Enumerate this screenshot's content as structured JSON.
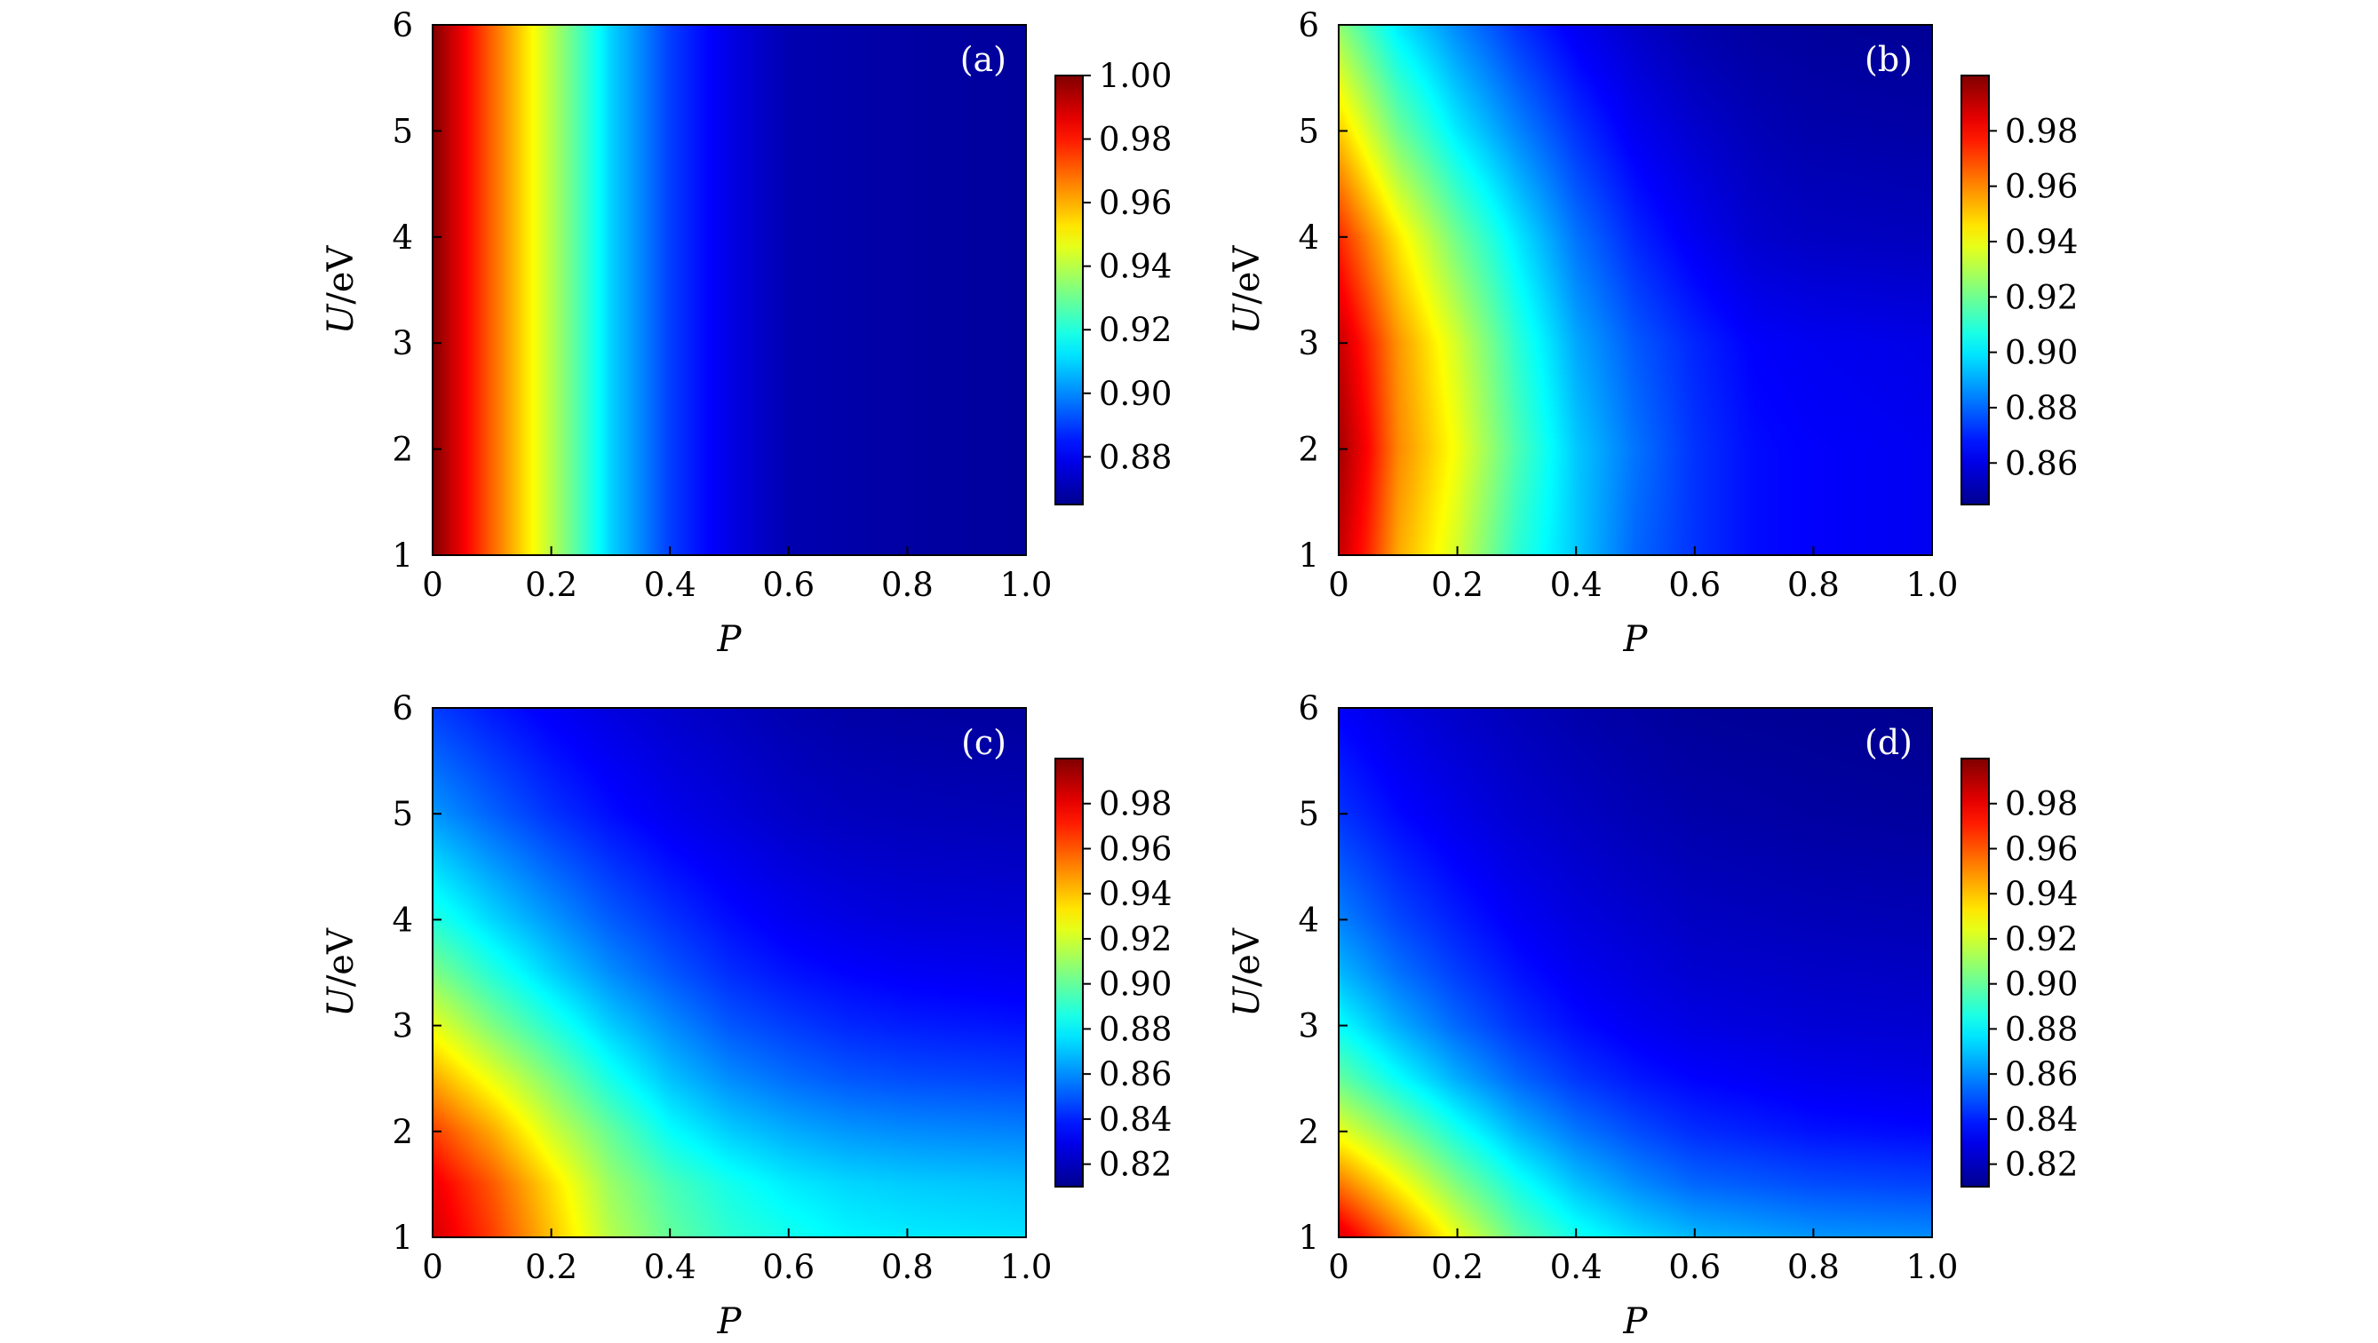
{
  "colors": {
    "colormap": [
      "#00008f",
      "#0000ff",
      "#00ffff",
      "#ffff00",
      "#ff0000",
      "#800000"
    ],
    "frame": "#000000",
    "tag_text": "#ffffff"
  },
  "chart_data": [
    {
      "type": "heatmap",
      "panel_label": "(a)",
      "xlabel": "P",
      "ylabel": "U/eV",
      "xlim": [
        0,
        1
      ],
      "ylim": [
        1,
        6
      ],
      "xticks": [
        "0",
        "0.2",
        "0.4",
        "0.6",
        "0.8",
        "1.0"
      ],
      "yticks": [
        "1",
        "2",
        "3",
        "4",
        "5",
        "6"
      ],
      "colorbar": {
        "min": 0.865,
        "max": 1.0,
        "ticks": [
          "0.88",
          "0.90",
          "0.92",
          "0.94",
          "0.96",
          "0.98",
          "1.00"
        ]
      },
      "grid_P": [
        0,
        0.05,
        0.1,
        0.15,
        0.2,
        0.3,
        0.4,
        0.5,
        0.6,
        0.8,
        1.0
      ],
      "grid_U": [
        1,
        2,
        3,
        4,
        5,
        6
      ],
      "z": [
        [
          1.0,
          0.985,
          0.97,
          0.955,
          0.94,
          0.91,
          0.89,
          0.878,
          0.87,
          0.868,
          0.867
        ],
        [
          1.0,
          0.985,
          0.97,
          0.955,
          0.94,
          0.91,
          0.89,
          0.878,
          0.87,
          0.868,
          0.867
        ],
        [
          1.0,
          0.985,
          0.97,
          0.955,
          0.94,
          0.91,
          0.89,
          0.878,
          0.87,
          0.868,
          0.867
        ],
        [
          1.0,
          0.985,
          0.97,
          0.955,
          0.94,
          0.91,
          0.89,
          0.878,
          0.87,
          0.868,
          0.867
        ],
        [
          1.0,
          0.985,
          0.97,
          0.955,
          0.94,
          0.91,
          0.89,
          0.878,
          0.87,
          0.868,
          0.867
        ],
        [
          1.0,
          0.985,
          0.97,
          0.955,
          0.94,
          0.91,
          0.89,
          0.878,
          0.87,
          0.868,
          0.867
        ]
      ]
    },
    {
      "type": "heatmap",
      "panel_label": "(b)",
      "xlabel": "P",
      "ylabel": "U/eV",
      "xlim": [
        0,
        1
      ],
      "ylim": [
        1,
        6
      ],
      "xticks": [
        "0",
        "0.2",
        "0.4",
        "0.6",
        "0.8",
        "1.0"
      ],
      "yticks": [
        "1",
        "2",
        "3",
        "4",
        "5",
        "6"
      ],
      "colorbar": {
        "min": 0.845,
        "max": 1.0,
        "ticks": [
          "0.86",
          "0.88",
          "0.90",
          "0.92",
          "0.94",
          "0.96",
          "0.98"
        ]
      },
      "grid_P": [
        0,
        0.05,
        0.1,
        0.2,
        0.3,
        0.4,
        0.5,
        0.6,
        0.7,
        0.8,
        1.0
      ],
      "grid_U": [
        1,
        2,
        3,
        4,
        5,
        6
      ],
      "z": [
        [
          0.99,
          0.975,
          0.955,
          0.935,
          0.91,
          0.895,
          0.88,
          0.872,
          0.866,
          0.864,
          0.862
        ],
        [
          0.995,
          0.98,
          0.96,
          0.94,
          0.915,
          0.895,
          0.882,
          0.872,
          0.866,
          0.864,
          0.862
        ],
        [
          0.99,
          0.975,
          0.958,
          0.935,
          0.91,
          0.89,
          0.878,
          0.87,
          0.864,
          0.862,
          0.86
        ],
        [
          0.975,
          0.96,
          0.945,
          0.92,
          0.9,
          0.882,
          0.87,
          0.862,
          0.856,
          0.854,
          0.853
        ],
        [
          0.95,
          0.935,
          0.92,
          0.9,
          0.885,
          0.872,
          0.862,
          0.856,
          0.852,
          0.85,
          0.849
        ],
        [
          0.925,
          0.912,
          0.9,
          0.885,
          0.872,
          0.862,
          0.855,
          0.85,
          0.848,
          0.847,
          0.846
        ]
      ]
    },
    {
      "type": "heatmap",
      "panel_label": "(c)",
      "xlabel": "P",
      "ylabel": "U/eV",
      "xlim": [
        0,
        1
      ],
      "ylim": [
        1,
        6
      ],
      "xticks": [
        "0",
        "0.2",
        "0.4",
        "0.6",
        "0.8",
        "1.0"
      ],
      "yticks": [
        "1",
        "2",
        "3",
        "4",
        "5",
        "6"
      ],
      "colorbar": {
        "min": 0.81,
        "max": 1.0,
        "ticks": [
          "0.82",
          "0.84",
          "0.86",
          "0.88",
          "0.90",
          "0.92",
          "0.94",
          "0.96",
          "0.98"
        ]
      },
      "grid_P": [
        0,
        0.1,
        0.2,
        0.3,
        0.4,
        0.5,
        0.6,
        0.7,
        0.8,
        1.0
      ],
      "grid_U": [
        1,
        1.5,
        2,
        2.5,
        3,
        3.5,
        4,
        5,
        6
      ],
      "z": [
        [
          0.985,
          0.965,
          0.94,
          0.915,
          0.9,
          0.89,
          0.885,
          0.88,
          0.878,
          0.876
        ],
        [
          0.98,
          0.96,
          0.935,
          0.91,
          0.895,
          0.885,
          0.878,
          0.874,
          0.872,
          0.87
        ],
        [
          0.965,
          0.945,
          0.92,
          0.9,
          0.882,
          0.872,
          0.866,
          0.862,
          0.86,
          0.858
        ],
        [
          0.945,
          0.925,
          0.905,
          0.885,
          0.87,
          0.86,
          0.854,
          0.85,
          0.848,
          0.846
        ],
        [
          0.925,
          0.905,
          0.888,
          0.872,
          0.86,
          0.85,
          0.845,
          0.841,
          0.839,
          0.837
        ],
        [
          0.905,
          0.888,
          0.873,
          0.86,
          0.85,
          0.842,
          0.837,
          0.834,
          0.832,
          0.83
        ],
        [
          0.888,
          0.874,
          0.862,
          0.851,
          0.843,
          0.836,
          0.831,
          0.828,
          0.826,
          0.825
        ],
        [
          0.862,
          0.852,
          0.843,
          0.836,
          0.83,
          0.826,
          0.822,
          0.82,
          0.819,
          0.818
        ],
        [
          0.845,
          0.838,
          0.832,
          0.827,
          0.823,
          0.82,
          0.817,
          0.815,
          0.814,
          0.813
        ]
      ]
    },
    {
      "type": "heatmap",
      "panel_label": "(d)",
      "xlabel": "P",
      "ylabel": "U/eV",
      "xlim": [
        0,
        1
      ],
      "ylim": [
        1,
        6
      ],
      "xticks": [
        "0",
        "0.2",
        "0.4",
        "0.6",
        "0.8",
        "1.0"
      ],
      "yticks": [
        "1",
        "2",
        "3",
        "4",
        "5",
        "6"
      ],
      "colorbar": {
        "min": 0.81,
        "max": 1.0,
        "ticks": [
          "0.82",
          "0.84",
          "0.86",
          "0.88",
          "0.90",
          "0.92",
          "0.94",
          "0.96",
          "0.98"
        ]
      },
      "grid_P": [
        0,
        0.1,
        0.2,
        0.3,
        0.4,
        0.5,
        0.6,
        0.8,
        1.0
      ],
      "grid_U": [
        1,
        1.5,
        2,
        2.5,
        3,
        3.5,
        4,
        5,
        6
      ],
      "z": [
        [
          0.985,
          0.955,
          0.925,
          0.9,
          0.885,
          0.875,
          0.868,
          0.862,
          0.86
        ],
        [
          0.955,
          0.93,
          0.905,
          0.885,
          0.87,
          0.86,
          0.853,
          0.848,
          0.846
        ],
        [
          0.925,
          0.905,
          0.885,
          0.868,
          0.856,
          0.848,
          0.842,
          0.837,
          0.835
        ],
        [
          0.9,
          0.882,
          0.866,
          0.853,
          0.844,
          0.838,
          0.834,
          0.83,
          0.828
        ],
        [
          0.882,
          0.866,
          0.853,
          0.843,
          0.836,
          0.831,
          0.828,
          0.825,
          0.824
        ],
        [
          0.868,
          0.855,
          0.845,
          0.837,
          0.831,
          0.827,
          0.824,
          0.822,
          0.821
        ],
        [
          0.858,
          0.847,
          0.839,
          0.832,
          0.827,
          0.824,
          0.821,
          0.819,
          0.818
        ],
        [
          0.843,
          0.835,
          0.829,
          0.824,
          0.821,
          0.818,
          0.816,
          0.814,
          0.813
        ],
        [
          0.833,
          0.827,
          0.822,
          0.819,
          0.816,
          0.814,
          0.812,
          0.811,
          0.81
        ]
      ]
    }
  ]
}
